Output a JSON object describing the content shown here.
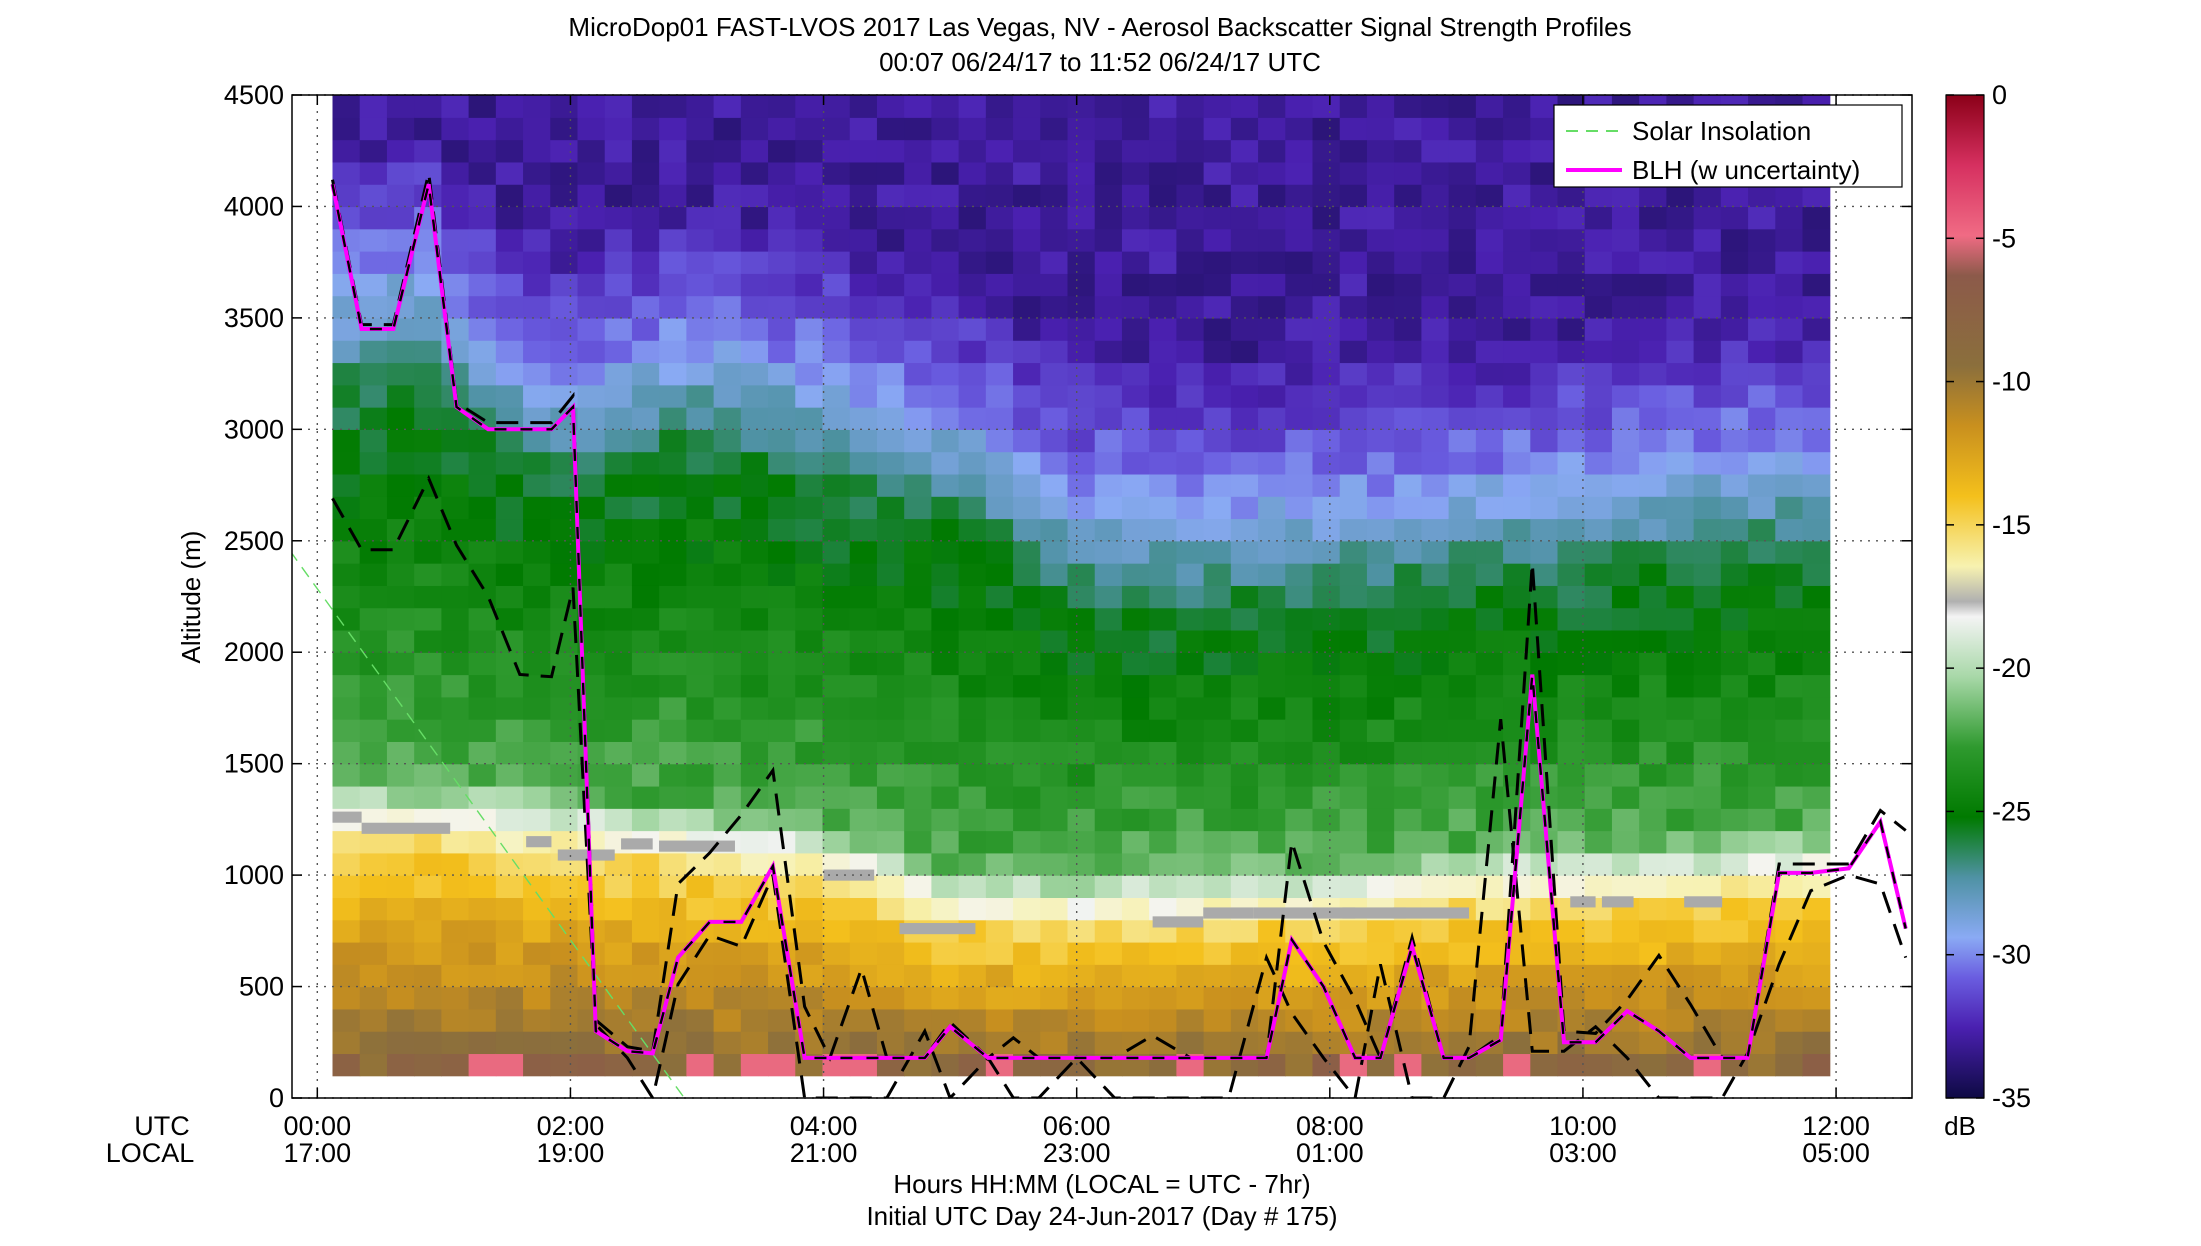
{
  "figure": {
    "title_line1": "MicroDop01 FAST-LVOS 2017 Las Vegas, NV - Aerosol Backscatter Signal Strength Profiles",
    "title_line2": "00:07 06/24/17 to 11:52 06/24/17  UTC",
    "xlabel_line1": "Hours HH:MM  (LOCAL = UTC - 7hr)",
    "xlabel_line2": "Initial UTC Day 24-Jun-2017 (Day # 175)",
    "ylabel": "Altitude (m)",
    "row_label_utc": "UTC",
    "row_label_local": "LOCAL",
    "colorbar_unit": "dB"
  },
  "legend": {
    "solar_label": "Solar Insolation",
    "blh_label": "BLH (w uncertainty)"
  },
  "colors": {
    "blh": "#ff00ff",
    "uncertainty": "#000000",
    "solar": "#66dd66"
  },
  "chart_data": {
    "type": "heatmap",
    "x_unit": "hours UTC",
    "xlim": [
      -0.2,
      12.6
    ],
    "ylim": [
      0,
      4500
    ],
    "zlim": [
      -35,
      0
    ],
    "grid": true,
    "legend_position": "top-right",
    "x_ticks": [
      {
        "value": 0,
        "utc": "00:00",
        "local": "17:00"
      },
      {
        "value": 2,
        "utc": "02:00",
        "local": "19:00"
      },
      {
        "value": 4,
        "utc": "04:00",
        "local": "21:00"
      },
      {
        "value": 6,
        "utc": "06:00",
        "local": "23:00"
      },
      {
        "value": 8,
        "utc": "08:00",
        "local": "01:00"
      },
      {
        "value": 10,
        "utc": "10:00",
        "local": "03:00"
      },
      {
        "value": 12,
        "utc": "12:00",
        "local": "05:00"
      }
    ],
    "y_ticks": [
      0,
      500,
      1000,
      1500,
      2000,
      2500,
      3000,
      3500,
      4000,
      4500
    ],
    "colorbar_ticks": [
      0,
      -5,
      -10,
      -15,
      -20,
      -25,
      -30,
      -35
    ],
    "heatmap_x_range": [
      0.12,
      11.95
    ],
    "heatmap_y_range": [
      100,
      4500
    ],
    "green_layer_top": [
      [
        0.12,
        3150
      ],
      [
        0.8,
        3300
      ],
      [
        1.2,
        3000
      ],
      [
        2.0,
        2750
      ],
      [
        3.0,
        2950
      ],
      [
        4.0,
        2800
      ],
      [
        5.0,
        2600
      ],
      [
        6.0,
        2250
      ],
      [
        7.0,
        2200
      ],
      [
        8.0,
        2250
      ],
      [
        9.0,
        2300
      ],
      [
        10.0,
        2350
      ],
      [
        11.0,
        2400
      ],
      [
        11.95,
        2450
      ]
    ],
    "low_layer_top": [
      [
        0.12,
        1150
      ],
      [
        1.0,
        1120
      ],
      [
        2.0,
        1080
      ],
      [
        3.0,
        1020
      ],
      [
        4.0,
        960
      ],
      [
        5.0,
        760
      ],
      [
        6.0,
        740
      ],
      [
        7.0,
        760
      ],
      [
        8.0,
        780
      ],
      [
        9.0,
        830
      ],
      [
        10.0,
        870
      ],
      [
        11.0,
        880
      ],
      [
        11.95,
        900
      ]
    ],
    "gray_marks": [
      [
        0.12,
        0.35,
        1260
      ],
      [
        0.35,
        1.05,
        1210
      ],
      [
        1.65,
        1.85,
        1150
      ],
      [
        1.9,
        2.35,
        1090
      ],
      [
        2.4,
        2.65,
        1140
      ],
      [
        2.7,
        3.3,
        1130
      ],
      [
        4.0,
        4.4,
        1000
      ],
      [
        4.6,
        5.2,
        760
      ],
      [
        6.6,
        7.0,
        790
      ],
      [
        7.0,
        7.4,
        830
      ],
      [
        7.4,
        8.2,
        830
      ],
      [
        8.1,
        8.6,
        830
      ],
      [
        8.5,
        9.1,
        830
      ],
      [
        9.9,
        10.1,
        880
      ],
      [
        10.15,
        10.4,
        880
      ],
      [
        10.8,
        11.1,
        880
      ]
    ],
    "series": [
      {
        "name": "BLH (w uncertainty)",
        "x": [
          0.12,
          0.35,
          0.6,
          0.88,
          1.1,
          1.35,
          1.6,
          1.85,
          2.02,
          2.2,
          2.45,
          2.65,
          2.85,
          3.1,
          3.35,
          3.6,
          3.85,
          4.05,
          4.3,
          4.5,
          4.8,
          5.0,
          5.3,
          5.5,
          5.7,
          6.0,
          6.3,
          6.6,
          6.9,
          7.2,
          7.5,
          7.7,
          7.95,
          8.2,
          8.4,
          8.65,
          8.9,
          9.1,
          9.35,
          9.6,
          9.85,
          10.1,
          10.35,
          10.6,
          10.85,
          11.1,
          11.3,
          11.55,
          11.8,
          12.1,
          12.35,
          12.55
        ],
        "y": [
          4100,
          3450,
          3450,
          4100,
          3100,
          3000,
          3000,
          3000,
          3100,
          300,
          210,
          200,
          630,
          790,
          790,
          1040,
          180,
          180,
          180,
          180,
          180,
          320,
          180,
          180,
          180,
          180,
          180,
          180,
          180,
          180,
          180,
          710,
          500,
          180,
          180,
          680,
          180,
          180,
          260,
          1900,
          250,
          250,
          390,
          300,
          180,
          180,
          180,
          1010,
          1010,
          1030,
          1240,
          760
        ]
      },
      {
        "name": "upper bound",
        "x": [
          0.12,
          0.35,
          0.6,
          0.88,
          1.1,
          1.35,
          1.6,
          1.85,
          2.02,
          2.2,
          2.45,
          2.65,
          2.85,
          3.1,
          3.35,
          3.6,
          3.85,
          4.05,
          4.3,
          4.5,
          4.8,
          5.0,
          5.3,
          5.5,
          5.7,
          6.0,
          6.3,
          6.6,
          6.9,
          7.2,
          7.5,
          7.7,
          7.95,
          8.2,
          8.4,
          8.65,
          8.9,
          9.1,
          9.35,
          9.6,
          9.85,
          10.1,
          10.35,
          10.6,
          10.85,
          11.1,
          11.3,
          11.55,
          11.8,
          12.1,
          12.35,
          12.55
        ],
        "y": [
          4120,
          3470,
          3470,
          4150,
          3120,
          3030,
          3030,
          3030,
          3150,
          350,
          230,
          210,
          960,
          1100,
          1270,
          1470,
          410,
          180,
          580,
          180,
          180,
          340,
          180,
          270,
          180,
          180,
          180,
          280,
          180,
          180,
          180,
          1150,
          700,
          440,
          180,
          720,
          180,
          180,
          280,
          2400,
          300,
          290,
          440,
          640,
          420,
          180,
          180,
          1050,
          1050,
          1050,
          1290,
          1200
        ]
      },
      {
        "name": "lower bound",
        "x": [
          0.12,
          0.35,
          0.6,
          0.88,
          1.1,
          1.35,
          1.6,
          1.85,
          2.02,
          2.2,
          2.45,
          2.65,
          2.85,
          3.1,
          3.35,
          3.6,
          3.85,
          4.05,
          4.3,
          4.5,
          4.8,
          5.0,
          5.3,
          5.5,
          5.7,
          6.0,
          6.3,
          6.6,
          6.9,
          7.2,
          7.5,
          7.7,
          7.95,
          8.2,
          8.4,
          8.65,
          8.9,
          9.1,
          9.35,
          9.6,
          9.85,
          10.1,
          10.35,
          10.6,
          10.85,
          11.1,
          11.3,
          11.55,
          11.8,
          12.1,
          12.35,
          12.55
        ],
        "y": [
          2690,
          2460,
          2460,
          2780,
          2480,
          2250,
          1900,
          1890,
          2290,
          330,
          180,
          0,
          510,
          730,
          680,
          1000,
          0,
          0,
          0,
          0,
          300,
          0,
          180,
          0,
          0,
          180,
          0,
          0,
          0,
          0,
          630,
          380,
          180,
          0,
          600,
          0,
          0,
          230,
          1700,
          210,
          210,
          320,
          180,
          0,
          0,
          0,
          200,
          600,
          930,
          1000,
          960,
          630
        ]
      },
      {
        "name": "Solar Insolation",
        "x": [
          -0.4,
          2.9
        ],
        "y": [
          2600,
          0
        ]
      }
    ]
  }
}
